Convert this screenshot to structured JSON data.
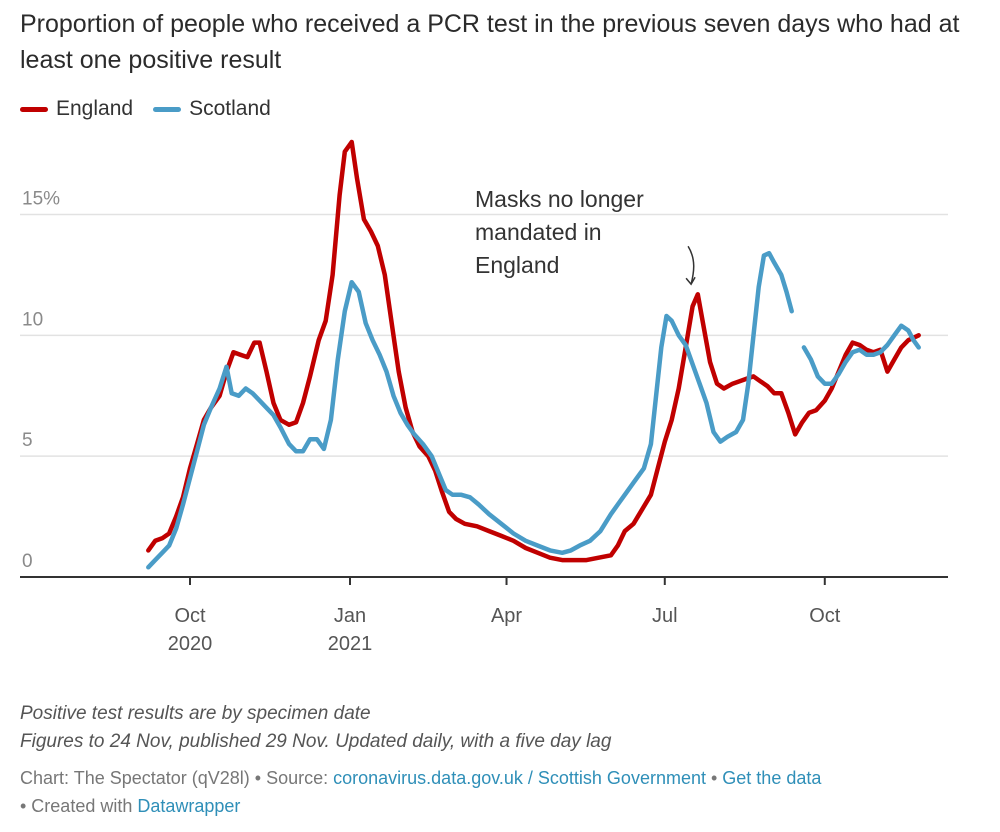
{
  "header": {
    "title": "Proportion of people who received a PCR test in the previous seven days who had at least one positive result"
  },
  "chart_data": {
    "type": "line",
    "xlabel": "",
    "ylabel": "",
    "ylim": [
      0,
      18
    ],
    "grid": true,
    "legend_position": "top-left",
    "x_ticks": [
      {
        "date": "2020-10-01",
        "label": "Oct",
        "label2": "2020"
      },
      {
        "date": "2021-01-01",
        "label": "Jan",
        "label2": "2021"
      },
      {
        "date": "2021-04-01",
        "label": "Apr",
        "label2": ""
      },
      {
        "date": "2021-07-01",
        "label": "Jul",
        "label2": ""
      },
      {
        "date": "2021-10-01",
        "label": "Oct",
        "label2": ""
      }
    ],
    "y_ticks": [
      {
        "value": 0,
        "label": "0"
      },
      {
        "value": 5,
        "label": "5"
      },
      {
        "value": 10,
        "label": "10"
      },
      {
        "value": 15,
        "label": "15%"
      }
    ],
    "annotation": {
      "lines": [
        "Masks no longer",
        "mandated in",
        "England"
      ],
      "date": "2021-07-19",
      "value": 11.7
    },
    "series": [
      {
        "name": "England",
        "color": "#c00000",
        "points": [
          [
            "2020-09-07",
            1.1
          ],
          [
            "2020-09-11",
            1.5
          ],
          [
            "2020-09-15",
            1.6
          ],
          [
            "2020-09-19",
            1.8
          ],
          [
            "2020-09-23",
            2.5
          ],
          [
            "2020-09-27",
            3.3
          ],
          [
            "2020-10-01",
            4.5
          ],
          [
            "2020-10-05",
            5.5
          ],
          [
            "2020-10-09",
            6.5
          ],
          [
            "2020-10-13",
            7.0
          ],
          [
            "2020-10-18",
            7.5
          ],
          [
            "2020-10-22",
            8.5
          ],
          [
            "2020-10-26",
            9.3
          ],
          [
            "2020-10-30",
            9.2
          ],
          [
            "2020-11-03",
            9.1
          ],
          [
            "2020-11-07",
            9.7
          ],
          [
            "2020-11-10",
            9.7
          ],
          [
            "2020-11-14",
            8.5
          ],
          [
            "2020-11-18",
            7.2
          ],
          [
            "2020-11-22",
            6.5
          ],
          [
            "2020-11-27",
            6.3
          ],
          [
            "2020-12-01",
            6.4
          ],
          [
            "2020-12-05",
            7.2
          ],
          [
            "2020-12-09",
            8.3
          ],
          [
            "2020-12-14",
            9.8
          ],
          [
            "2020-12-18",
            10.6
          ],
          [
            "2020-12-22",
            12.5
          ],
          [
            "2020-12-26",
            15.8
          ],
          [
            "2020-12-29",
            17.6
          ],
          [
            "2021-01-02",
            18.0
          ],
          [
            "2021-01-05",
            16.5
          ],
          [
            "2021-01-09",
            14.8
          ],
          [
            "2021-01-13",
            14.3
          ],
          [
            "2021-01-17",
            13.7
          ],
          [
            "2021-01-21",
            12.5
          ],
          [
            "2021-01-25",
            10.5
          ],
          [
            "2021-01-29",
            8.5
          ],
          [
            "2021-02-02",
            7.0
          ],
          [
            "2021-02-06",
            6.0
          ],
          [
            "2021-02-10",
            5.4
          ],
          [
            "2021-02-15",
            5.0
          ],
          [
            "2021-02-19",
            4.4
          ],
          [
            "2021-02-23",
            3.5
          ],
          [
            "2021-02-27",
            2.7
          ],
          [
            "2021-03-03",
            2.4
          ],
          [
            "2021-03-08",
            2.2
          ],
          [
            "2021-03-15",
            2.1
          ],
          [
            "2021-03-22",
            1.9
          ],
          [
            "2021-03-29",
            1.7
          ],
          [
            "2021-04-05",
            1.5
          ],
          [
            "2021-04-12",
            1.2
          ],
          [
            "2021-04-19",
            1.0
          ],
          [
            "2021-04-26",
            0.8
          ],
          [
            "2021-05-03",
            0.7
          ],
          [
            "2021-05-10",
            0.7
          ],
          [
            "2021-05-17",
            0.7
          ],
          [
            "2021-05-24",
            0.8
          ],
          [
            "2021-05-31",
            0.9
          ],
          [
            "2021-06-04",
            1.3
          ],
          [
            "2021-06-08",
            1.9
          ],
          [
            "2021-06-13",
            2.2
          ],
          [
            "2021-06-18",
            2.8
          ],
          [
            "2021-06-23",
            3.4
          ],
          [
            "2021-06-27",
            4.5
          ],
          [
            "2021-07-01",
            5.6
          ],
          [
            "2021-07-05",
            6.5
          ],
          [
            "2021-07-09",
            7.8
          ],
          [
            "2021-07-13",
            9.5
          ],
          [
            "2021-07-17",
            11.2
          ],
          [
            "2021-07-20",
            11.7
          ],
          [
            "2021-07-23",
            10.5
          ],
          [
            "2021-07-27",
            8.9
          ],
          [
            "2021-07-31",
            8.0
          ],
          [
            "2021-08-04",
            7.8
          ],
          [
            "2021-08-09",
            8.0
          ],
          [
            "2021-08-13",
            8.1
          ],
          [
            "2021-08-17",
            8.2
          ],
          [
            "2021-08-21",
            8.3
          ],
          [
            "2021-08-25",
            8.1
          ],
          [
            "2021-08-29",
            7.9
          ],
          [
            "2021-09-02",
            7.6
          ],
          [
            "2021-09-06",
            7.6
          ],
          [
            "2021-09-10",
            6.8
          ],
          [
            "2021-09-14",
            5.9
          ],
          [
            "2021-09-18",
            6.4
          ],
          [
            "2021-09-22",
            6.8
          ],
          [
            "2021-09-26",
            6.9
          ],
          [
            "2021-10-01",
            7.3
          ],
          [
            "2021-10-05",
            7.8
          ],
          [
            "2021-10-09",
            8.5
          ],
          [
            "2021-10-13",
            9.2
          ],
          [
            "2021-10-17",
            9.7
          ],
          [
            "2021-10-21",
            9.6
          ],
          [
            "2021-10-25",
            9.4
          ],
          [
            "2021-10-29",
            9.3
          ],
          [
            "2021-11-02",
            9.4
          ],
          [
            "2021-11-06",
            8.5
          ],
          [
            "2021-11-10",
            9.0
          ],
          [
            "2021-11-14",
            9.5
          ],
          [
            "2021-11-18",
            9.8
          ],
          [
            "2021-11-24",
            10.0
          ]
        ]
      },
      {
        "name": "Scotland",
        "color": "#4a9cc7",
        "segments": [
          [
            [
              "2020-09-07",
              0.4
            ],
            [
              "2020-09-11",
              0.7
            ],
            [
              "2020-09-15",
              1.0
            ],
            [
              "2020-09-19",
              1.3
            ],
            [
              "2020-09-23",
              2.0
            ],
            [
              "2020-09-27",
              3.0
            ],
            [
              "2020-10-01",
              4.1
            ],
            [
              "2020-10-05",
              5.2
            ],
            [
              "2020-10-09",
              6.3
            ],
            [
              "2020-10-13",
              7.0
            ],
            [
              "2020-10-18",
              7.8
            ],
            [
              "2020-10-22",
              8.7
            ],
            [
              "2020-10-25",
              7.6
            ],
            [
              "2020-10-29",
              7.5
            ],
            [
              "2020-11-02",
              7.8
            ],
            [
              "2020-11-06",
              7.6
            ],
            [
              "2020-11-10",
              7.3
            ],
            [
              "2020-11-14",
              7.0
            ],
            [
              "2020-11-18",
              6.7
            ],
            [
              "2020-11-22",
              6.2
            ],
            [
              "2020-11-27",
              5.5
            ],
            [
              "2020-12-01",
              5.2
            ],
            [
              "2020-12-05",
              5.2
            ],
            [
              "2020-12-09",
              5.7
            ],
            [
              "2020-12-13",
              5.7
            ],
            [
              "2020-12-17",
              5.3
            ],
            [
              "2020-12-21",
              6.5
            ],
            [
              "2020-12-25",
              9.0
            ],
            [
              "2020-12-29",
              11.0
            ],
            [
              "2021-01-02",
              12.2
            ],
            [
              "2021-01-06",
              11.8
            ],
            [
              "2021-01-10",
              10.5
            ],
            [
              "2021-01-14",
              9.8
            ],
            [
              "2021-01-18",
              9.2
            ],
            [
              "2021-01-22",
              8.5
            ],
            [
              "2021-01-26",
              7.5
            ],
            [
              "2021-01-30",
              6.8
            ],
            [
              "2021-02-03",
              6.3
            ],
            [
              "2021-02-07",
              5.9
            ],
            [
              "2021-02-12",
              5.5
            ],
            [
              "2021-02-17",
              5.0
            ],
            [
              "2021-02-21",
              4.3
            ],
            [
              "2021-02-25",
              3.6
            ],
            [
              "2021-03-01",
              3.4
            ],
            [
              "2021-03-06",
              3.4
            ],
            [
              "2021-03-11",
              3.3
            ],
            [
              "2021-03-16",
              3.0
            ],
            [
              "2021-03-22",
              2.6
            ],
            [
              "2021-03-29",
              2.2
            ],
            [
              "2021-04-05",
              1.8
            ],
            [
              "2021-04-12",
              1.5
            ],
            [
              "2021-04-19",
              1.3
            ],
            [
              "2021-04-26",
              1.1
            ],
            [
              "2021-05-03",
              1.0
            ],
            [
              "2021-05-08",
              1.1
            ],
            [
              "2021-05-13",
              1.3
            ],
            [
              "2021-05-19",
              1.5
            ],
            [
              "2021-05-25",
              1.9
            ],
            [
              "2021-05-31",
              2.6
            ],
            [
              "2021-06-04",
              3.0
            ],
            [
              "2021-06-09",
              3.5
            ],
            [
              "2021-06-14",
              4.0
            ],
            [
              "2021-06-19",
              4.5
            ],
            [
              "2021-06-23",
              5.5
            ],
            [
              "2021-06-26",
              7.5
            ],
            [
              "2021-06-29",
              9.5
            ],
            [
              "2021-07-02",
              10.8
            ],
            [
              "2021-07-05",
              10.6
            ],
            [
              "2021-07-09",
              10.0
            ],
            [
              "2021-07-13",
              9.6
            ],
            [
              "2021-07-17",
              8.8
            ],
            [
              "2021-07-21",
              8.0
            ],
            [
              "2021-07-25",
              7.2
            ],
            [
              "2021-07-29",
              6.0
            ],
            [
              "2021-08-02",
              5.6
            ],
            [
              "2021-08-06",
              5.8
            ],
            [
              "2021-08-11",
              6.0
            ],
            [
              "2021-08-15",
              6.5
            ],
            [
              "2021-08-18",
              8.0
            ],
            [
              "2021-08-21",
              10.0
            ],
            [
              "2021-08-24",
              12.0
            ],
            [
              "2021-08-27",
              13.3
            ],
            [
              "2021-08-30",
              13.4
            ],
            [
              "2021-09-02",
              13.0
            ],
            [
              "2021-09-06",
              12.5
            ],
            [
              "2021-09-09",
              11.8
            ],
            [
              "2021-09-12",
              11.0
            ]
          ],
          [
            [
              "2021-09-19",
              9.5
            ],
            [
              "2021-09-23",
              9.0
            ],
            [
              "2021-09-27",
              8.3
            ],
            [
              "2021-10-01",
              8.0
            ],
            [
              "2021-10-05",
              8.0
            ],
            [
              "2021-10-09",
              8.4
            ],
            [
              "2021-10-13",
              8.9
            ],
            [
              "2021-10-17",
              9.3
            ],
            [
              "2021-10-21",
              9.4
            ],
            [
              "2021-10-25",
              9.2
            ],
            [
              "2021-10-29",
              9.2
            ],
            [
              "2021-11-02",
              9.3
            ],
            [
              "2021-11-06",
              9.6
            ],
            [
              "2021-11-10",
              10.0
            ],
            [
              "2021-11-14",
              10.4
            ],
            [
              "2021-11-18",
              10.2
            ],
            [
              "2021-11-21",
              9.8
            ],
            [
              "2021-11-24",
              9.5
            ]
          ]
        ]
      }
    ]
  },
  "notes": {
    "line1": "Positive test results are by specimen date",
    "line2": "Figures to 24 Nov, published 29 Nov. Updated daily, with a five day lag"
  },
  "credits": {
    "chart_prefix": "Chart: The Spectator (qV28l) • Source: ",
    "source_link": "coronavirus.data.gov.uk / Scottish Government",
    "separator": " • ",
    "data_link": "Get the data",
    "created_prefix": "• Created with ",
    "created_link": "Datawrapper"
  }
}
